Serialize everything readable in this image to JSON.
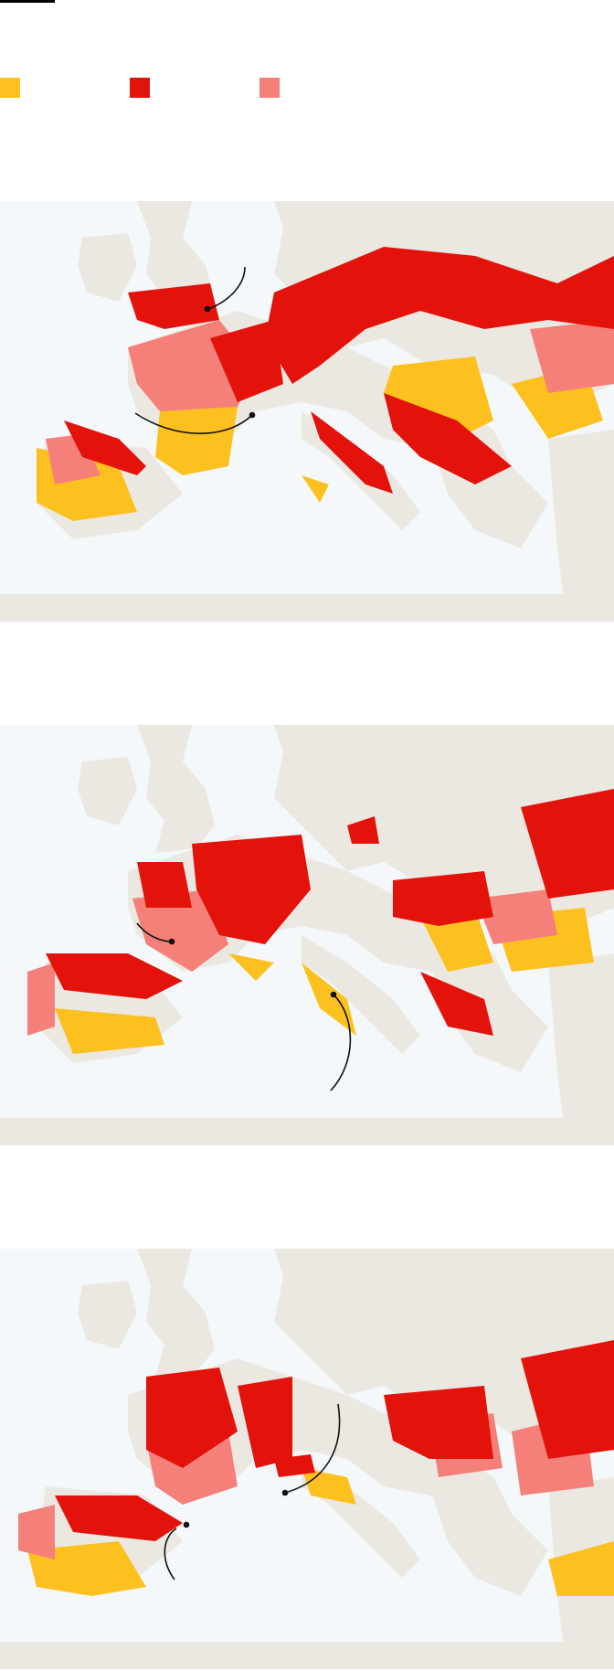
{
  "header": {
    "title": "",
    "subtitle": ""
  },
  "colors": {
    "sea": "#f4f8fa",
    "land": "#ebe8e1",
    "yellow": "#fcc11f",
    "red": "#e3120b",
    "pink": "#f48079",
    "annotation": "#111111"
  },
  "legend": [
    {
      "label": "",
      "color": "#fcc11f"
    },
    {
      "label": "",
      "color": "#e3120b"
    },
    {
      "label": "",
      "color": "#f48079"
    }
  ],
  "maps": [
    {
      "title": "",
      "annotations": []
    },
    {
      "title": "",
      "annotations": []
    },
    {
      "title": "",
      "annotations": []
    }
  ]
}
